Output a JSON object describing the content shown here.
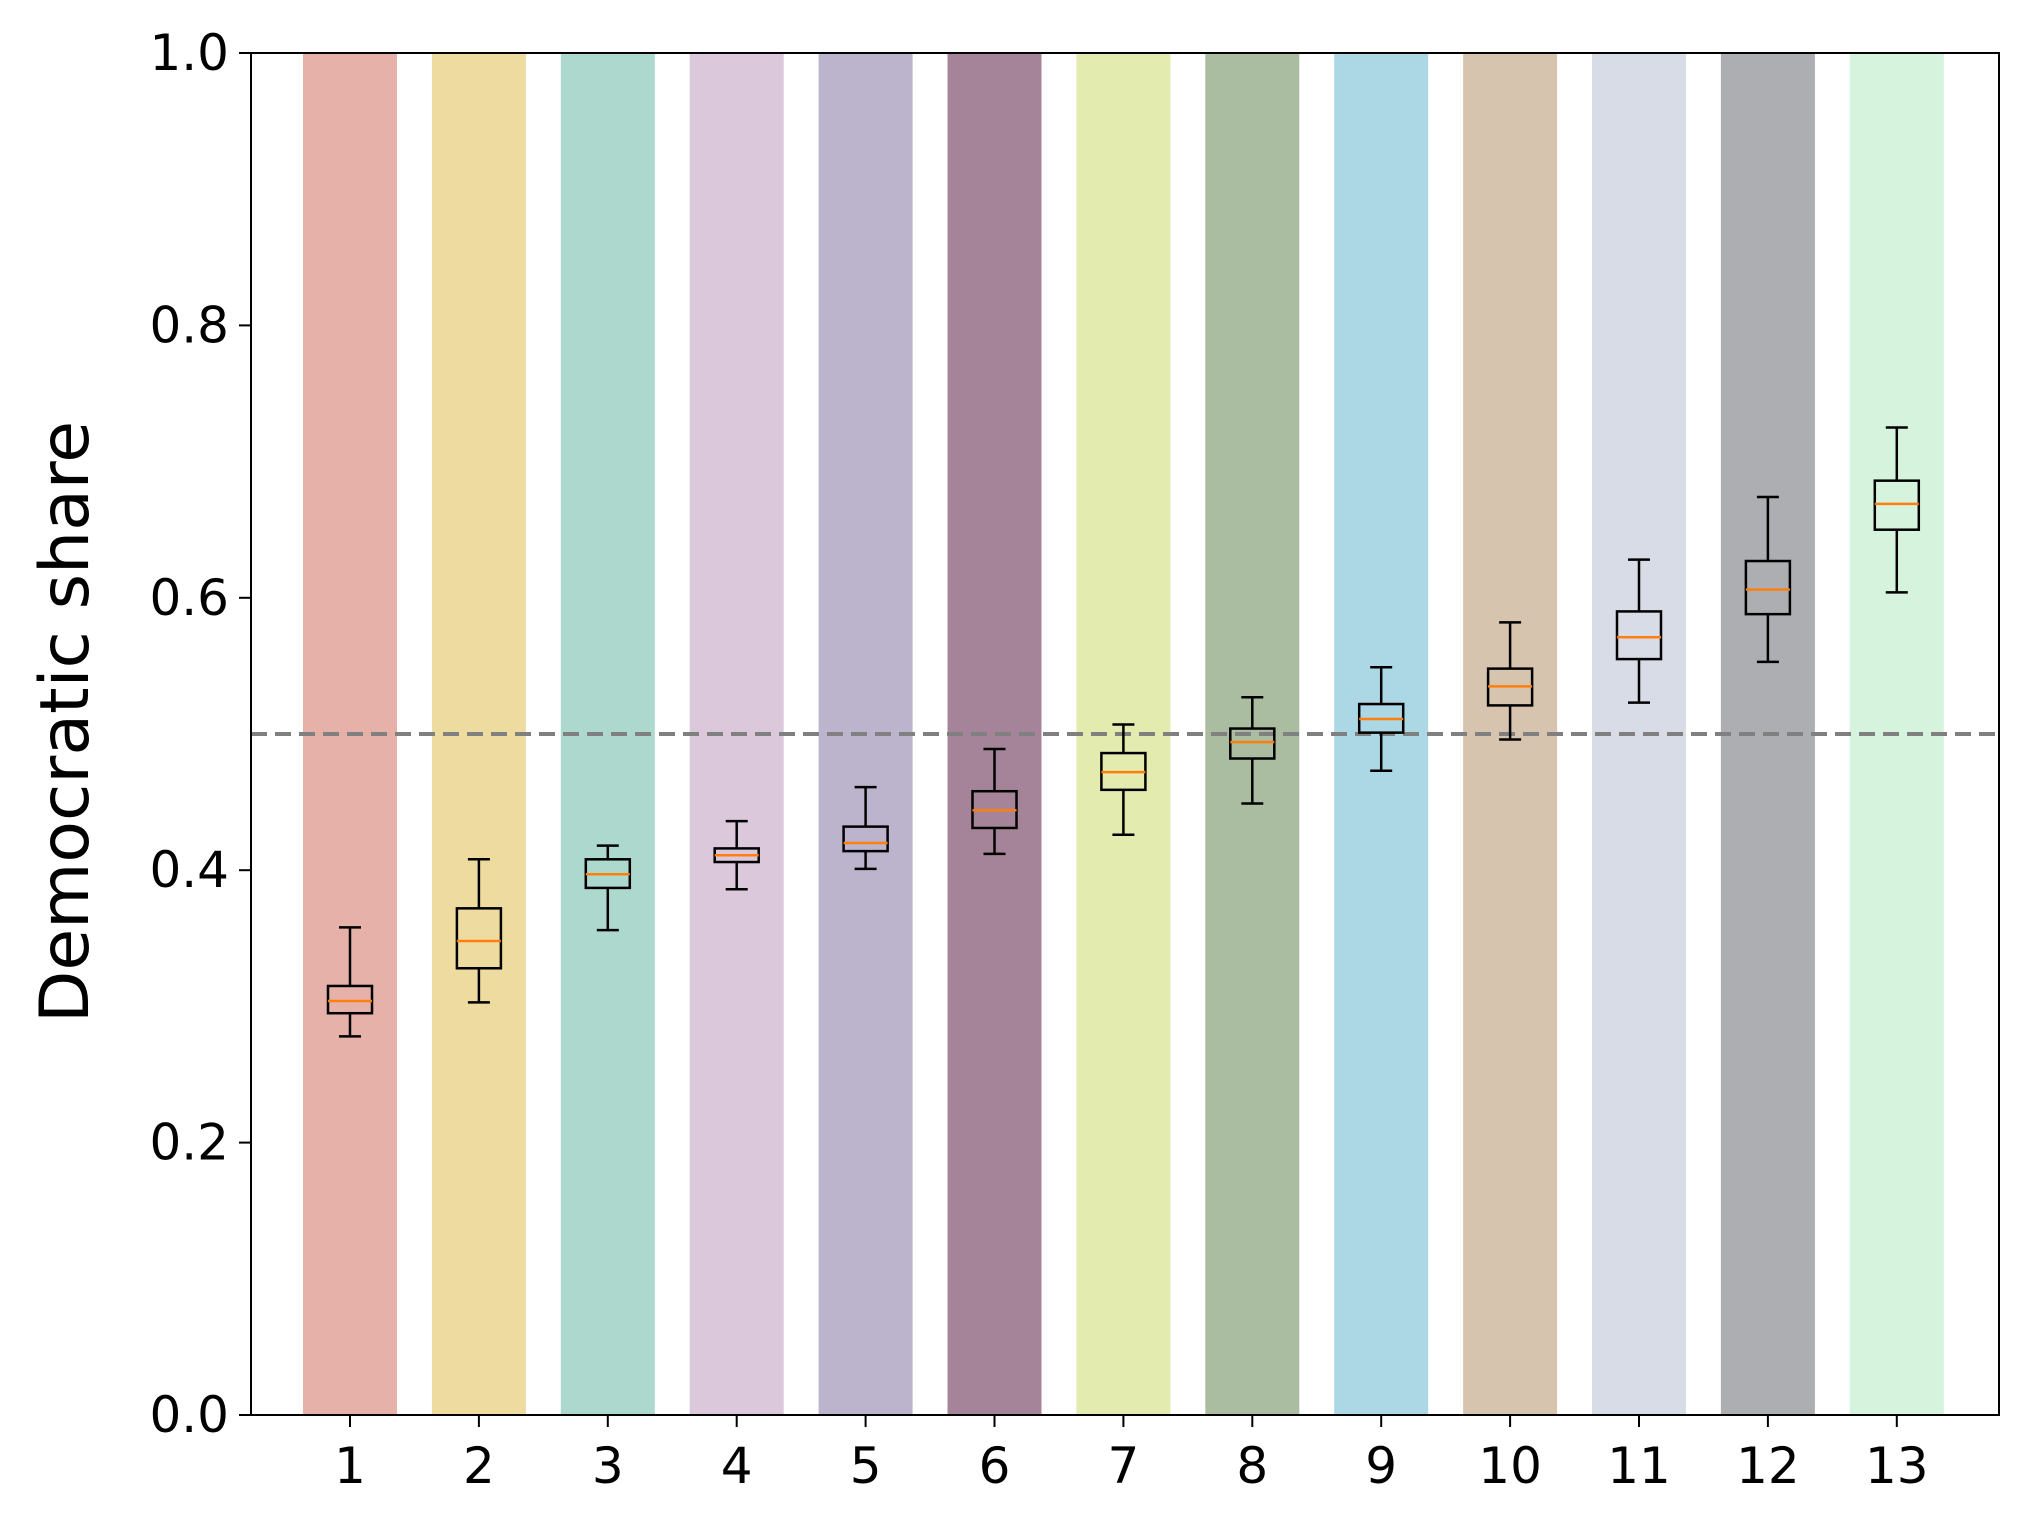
{
  "chart_data": {
    "type": "box",
    "title": "",
    "xlabel": "",
    "ylabel": "Democratic share",
    "ylim": [
      0.0,
      1.0
    ],
    "yticks": [
      "0.0",
      "0.2",
      "0.4",
      "0.6",
      "0.8",
      "1.0"
    ],
    "categories": [
      "1",
      "2",
      "3",
      "4",
      "5",
      "6",
      "7",
      "8",
      "9",
      "10",
      "11",
      "12",
      "13"
    ],
    "reference_line": {
      "y": 0.5,
      "style": "dashed",
      "color": "#808080"
    },
    "median_color": "#ff7f0e",
    "box_edge_color": "#000000",
    "band_colors": [
      "#e6b1a9",
      "#eddba0",
      "#acd8cd",
      "#dcc8db",
      "#bbb4cc",
      "#a58499",
      "#e4ebaf",
      "#aabda0",
      "#acd7e4",
      "#d7c4ae",
      "#d8dce7",
      "#adaeb1",
      "#d6f3dd"
    ],
    "boxes": [
      {
        "label": "1",
        "whislo": 0.278,
        "q1": 0.295,
        "med": 0.304,
        "q3": 0.315,
        "whishi": 0.358
      },
      {
        "label": "2",
        "whislo": 0.303,
        "q1": 0.328,
        "med": 0.348,
        "q3": 0.372,
        "whishi": 0.408
      },
      {
        "label": "3",
        "whislo": 0.356,
        "q1": 0.387,
        "med": 0.397,
        "q3": 0.408,
        "whishi": 0.418
      },
      {
        "label": "4",
        "whislo": 0.386,
        "q1": 0.406,
        "med": 0.411,
        "q3": 0.416,
        "whishi": 0.436
      },
      {
        "label": "5",
        "whislo": 0.401,
        "q1": 0.414,
        "med": 0.42,
        "q3": 0.432,
        "whishi": 0.461
      },
      {
        "label": "6",
        "whislo": 0.412,
        "q1": 0.431,
        "med": 0.444,
        "q3": 0.458,
        "whishi": 0.489
      },
      {
        "label": "7",
        "whislo": 0.426,
        "q1": 0.459,
        "med": 0.472,
        "q3": 0.486,
        "whishi": 0.507
      },
      {
        "label": "8",
        "whislo": 0.449,
        "q1": 0.482,
        "med": 0.494,
        "q3": 0.504,
        "whishi": 0.527
      },
      {
        "label": "9",
        "whislo": 0.473,
        "q1": 0.501,
        "med": 0.511,
        "q3": 0.522,
        "whishi": 0.549
      },
      {
        "label": "10",
        "whislo": 0.496,
        "q1": 0.521,
        "med": 0.535,
        "q3": 0.548,
        "whishi": 0.582
      },
      {
        "label": "11",
        "whislo": 0.523,
        "q1": 0.555,
        "med": 0.571,
        "q3": 0.59,
        "whishi": 0.628
      },
      {
        "label": "12",
        "whislo": 0.553,
        "q1": 0.588,
        "med": 0.606,
        "q3": 0.627,
        "whishi": 0.674
      },
      {
        "label": "13",
        "whislo": 0.604,
        "q1": 0.65,
        "med": 0.669,
        "q3": 0.686,
        "whishi": 0.725
      }
    ]
  }
}
